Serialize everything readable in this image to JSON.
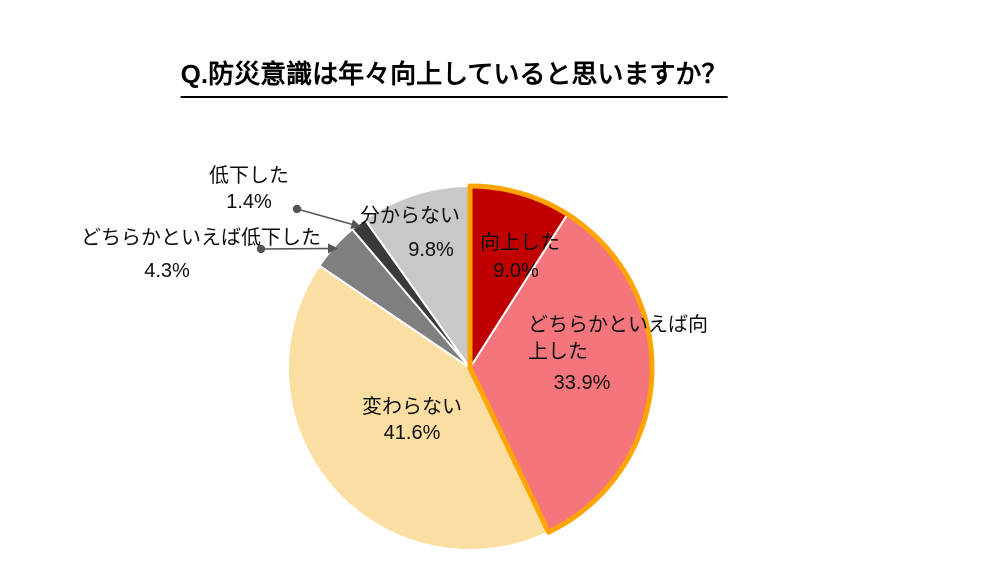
{
  "title": "Q.防災意識は年々向上していると思いますか？",
  "chart_data": {
    "type": "pie",
    "title": "Q.防災意識は年々向上していると思いますか？",
    "start_angle_deg": 0,
    "direction": "clockwise",
    "legend_position": "none",
    "background_color": "#ffffff",
    "highlight_outline_color": "#ffa400",
    "slices": [
      {
        "label": "向上した",
        "value": 9.0,
        "percent_label": "9.0%",
        "color": "#c00000",
        "highlighted": true
      },
      {
        "label": "どちらかといえば向上した",
        "value": 33.9,
        "percent_label": "33.9%",
        "color": "#f5757d",
        "highlighted": true
      },
      {
        "label": "変わらない",
        "value": 41.6,
        "percent_label": "41.6%",
        "color": "#fbdfa2",
        "highlighted": false
      },
      {
        "label": "どちらかといえば低下した",
        "value": 4.3,
        "percent_label": "4.3%",
        "color": "#7f7f7f",
        "highlighted": false
      },
      {
        "label": "低下した",
        "value": 1.4,
        "percent_label": "1.4%",
        "color": "#3a3a3a",
        "highlighted": false
      },
      {
        "label": "分からない",
        "value": 9.8,
        "percent_label": "9.8%",
        "color": "#c8c8c8",
        "highlighted": false
      }
    ]
  }
}
